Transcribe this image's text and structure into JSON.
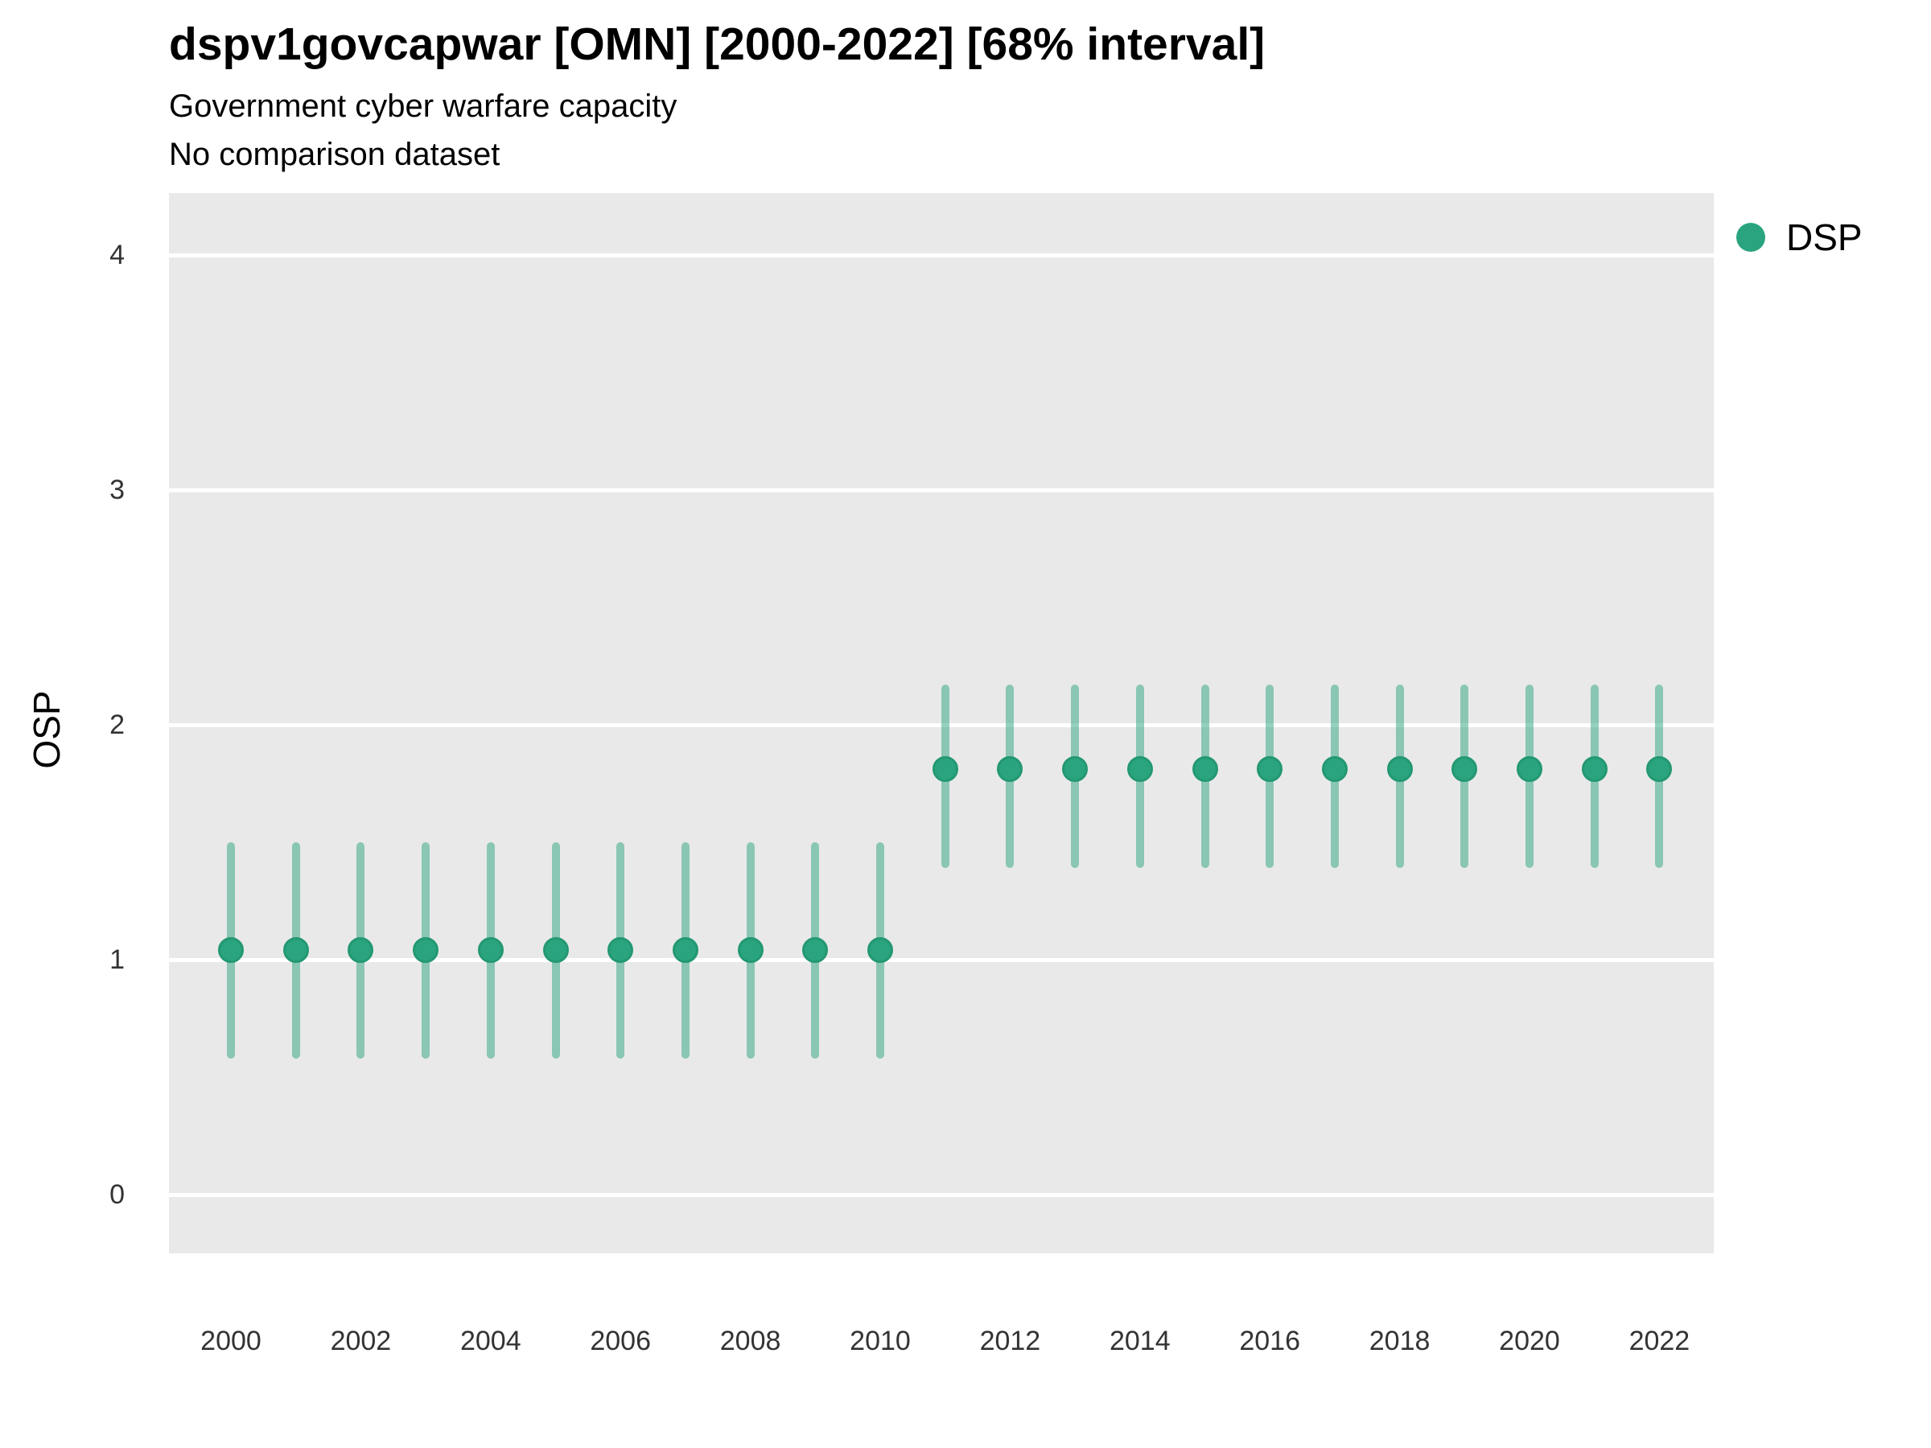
{
  "title": "dspv1govcapwar [OMN] [2000-2022] [68% interval]",
  "subtitle": "Government cyber warfare capacity",
  "subtitle2": "No comparison dataset",
  "legend": {
    "label": "DSP"
  },
  "colors": {
    "point": "#2aa47e",
    "point_border": "#239872",
    "errorbar": "rgba(42,164,126,0.5)",
    "panel_bg": "#e9e9e9",
    "gridline": "#ffffff",
    "tick_text": "#333333"
  },
  "chart_data": {
    "type": "scatter",
    "title": "dspv1govcapwar [OMN] [2000-2022] [68% interval]",
    "subtitle": "Government cyber warfare capacity",
    "note": "No comparison dataset",
    "interval": "68%",
    "xlabel": "",
    "ylabel": "OSP",
    "x": [
      2000,
      2001,
      2002,
      2003,
      2004,
      2005,
      2006,
      2007,
      2008,
      2009,
      2010,
      2011,
      2012,
      2013,
      2014,
      2015,
      2016,
      2017,
      2018,
      2019,
      2020,
      2021,
      2022
    ],
    "series": [
      {
        "name": "DSP",
        "values": [
          1.04,
          1.04,
          1.04,
          1.04,
          1.04,
          1.04,
          1.04,
          1.04,
          1.04,
          1.04,
          1.04,
          1.81,
          1.81,
          1.81,
          1.81,
          1.81,
          1.81,
          1.81,
          1.81,
          1.81,
          1.81,
          1.81,
          1.81
        ],
        "lower": [
          0.58,
          0.58,
          0.58,
          0.58,
          0.58,
          0.58,
          0.58,
          0.58,
          0.58,
          0.58,
          0.58,
          1.39,
          1.39,
          1.39,
          1.39,
          1.39,
          1.39,
          1.39,
          1.39,
          1.39,
          1.39,
          1.39,
          1.39
        ],
        "upper": [
          1.5,
          1.5,
          1.5,
          1.5,
          1.5,
          1.5,
          1.5,
          1.5,
          1.5,
          1.5,
          1.5,
          2.17,
          2.17,
          2.17,
          2.17,
          2.17,
          2.17,
          2.17,
          2.17,
          2.17,
          2.17,
          2.17,
          2.17
        ]
      }
    ],
    "xticks": [
      "2000",
      "2002",
      "2004",
      "2006",
      "2008",
      "2010",
      "2012",
      "2014",
      "2016",
      "2018",
      "2020",
      "2022"
    ],
    "yticks": [
      "0",
      "1",
      "2",
      "3",
      "4"
    ],
    "ylim": [
      -0.25,
      4.26
    ],
    "grid": "horizontal-major-white",
    "legend_position": "right"
  }
}
